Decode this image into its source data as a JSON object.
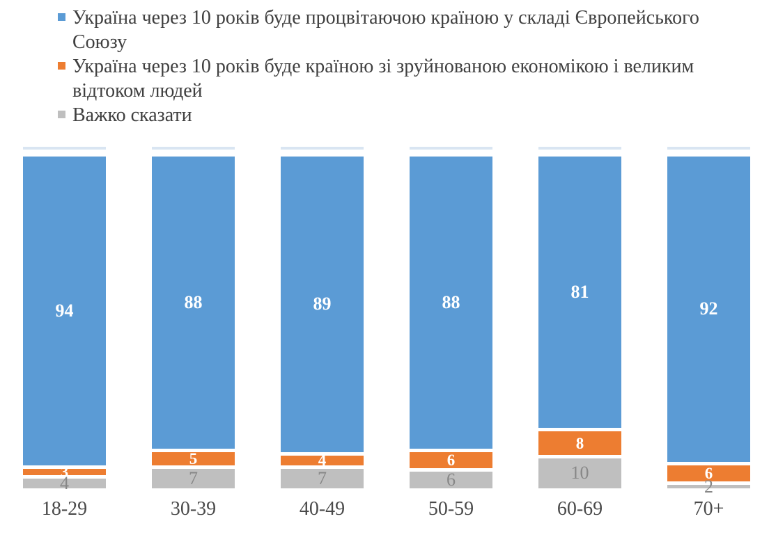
{
  "chart_data": {
    "type": "bar",
    "subtype": "stacked-column-100-percent",
    "orientation": "vertical",
    "title": "",
    "xlabel": "",
    "ylabel": "",
    "ylim": [
      0,
      100
    ],
    "grid": false,
    "legend_position": "top-left",
    "data_labels": true,
    "categories": [
      "18-29",
      "30-39",
      "40-49",
      "50-59",
      "60-69",
      "70+"
    ],
    "series": [
      {
        "name": "Україна через 10 років буде процвітаючою країною у складі Європейського Союзу",
        "color": "#5b9bd5",
        "label_color": "#ffffff",
        "values": [
          94,
          88,
          89,
          88,
          81,
          92
        ]
      },
      {
        "name": "Україна через 10 років буде країною зі зруйнованою економікою і великим відтоком людей",
        "color": "#ed7d31",
        "label_color": "#ffffff",
        "values": [
          3,
          5,
          4,
          6,
          8,
          6
        ]
      },
      {
        "name": "Важко сказати",
        "color": "#bfbfbf",
        "label_color": "#878787",
        "values": [
          4,
          7,
          7,
          6,
          10,
          2
        ]
      }
    ]
  },
  "legend": {
    "items": [
      {
        "label": "Україна через 10 років буде процвітаючою країною у складі Європейського Союзу",
        "color": "#5b9bd5"
      },
      {
        "label": "Україна через 10 років буде країною зі зруйнованою економікою і великим відтоком людей",
        "color": "#ed7d31"
      },
      {
        "label": "Важко сказати",
        "color": "#bfbfbf"
      }
    ]
  },
  "colors": {
    "background": "#ffffff",
    "legend_text": "#3f3f3f",
    "category_text": "#4a4a4a",
    "segment_gap": "#ffffff",
    "ghost_strip": "#d9e5f2"
  }
}
